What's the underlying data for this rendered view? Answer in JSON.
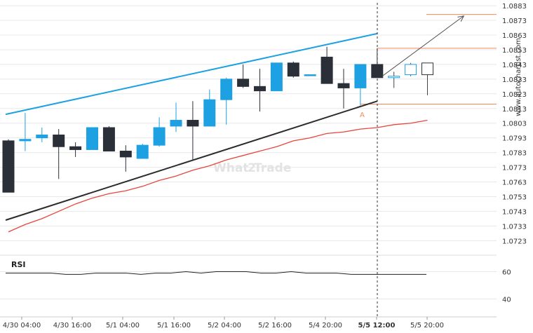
{
  "chart_data": {
    "type": "candlestick",
    "symbol": "",
    "price_axis": {
      "ticks": [
        "1.0883",
        "1.0873",
        "1.0863",
        "1.0853",
        "1.0843",
        "1.0833",
        "1.0823",
        "1.0813",
        "1.0803",
        "1.0793",
        "1.0783",
        "1.0773",
        "1.0763",
        "1.0753",
        "1.0743",
        "1.0733",
        "1.0723"
      ],
      "range": [
        1.0716,
        1.0884
      ]
    },
    "time_axis": {
      "ticks": [
        "4/30 04:00",
        "4/30 16:00",
        "5/1 04:00",
        "5/1 16:00",
        "5/2 04:00",
        "5/2 16:00",
        "5/4 20:00",
        "5/5 12:00",
        "5/5 20:00"
      ]
    },
    "current_time_label": "5/5 12:00",
    "candles": [
      {
        "o": 1.0791,
        "h": 1.0792,
        "l": 1.0756,
        "c": 1.0756
      },
      {
        "o": 1.0791,
        "h": 1.081,
        "l": 1.0784,
        "c": 1.0792
      },
      {
        "o": 1.0793,
        "h": 1.08,
        "l": 1.079,
        "c": 1.0795
      },
      {
        "o": 1.0795,
        "h": 1.0799,
        "l": 1.0765,
        "c": 1.0787
      },
      {
        "o": 1.0787,
        "h": 1.079,
        "l": 1.078,
        "c": 1.0785
      },
      {
        "o": 1.0785,
        "h": 1.08,
        "l": 1.0785,
        "c": 1.08
      },
      {
        "o": 1.08,
        "h": 1.0801,
        "l": 1.0784,
        "c": 1.0784
      },
      {
        "o": 1.0784,
        "h": 1.0788,
        "l": 1.077,
        "c": 1.078
      },
      {
        "o": 1.0779,
        "h": 1.0789,
        "l": 1.0779,
        "c": 1.0788
      },
      {
        "o": 1.0788,
        "h": 1.0807,
        "l": 1.0787,
        "c": 1.08
      },
      {
        "o": 1.0801,
        "h": 1.0817,
        "l": 1.0797,
        "c": 1.0805
      },
      {
        "o": 1.0805,
        "h": 1.0818,
        "l": 1.0778,
        "c": 1.0801
      },
      {
        "o": 1.0801,
        "h": 1.0826,
        "l": 1.0801,
        "c": 1.0819
      },
      {
        "o": 1.0819,
        "h": 1.0834,
        "l": 1.0802,
        "c": 1.0833
      },
      {
        "o": 1.0833,
        "h": 1.0843,
        "l": 1.0827,
        "c": 1.0828
      },
      {
        "o": 1.0828,
        "h": 1.084,
        "l": 1.0811,
        "c": 1.0825
      },
      {
        "o": 1.0825,
        "h": 1.0844,
        "l": 1.0825,
        "c": 1.0844
      },
      {
        "o": 1.0844,
        "h": 1.0845,
        "l": 1.0834,
        "c": 1.0835
      },
      {
        "o": 1.0836,
        "h": 1.0836,
        "l": 1.0836,
        "c": 1.0836
      },
      {
        "o": 1.0848,
        "h": 1.0855,
        "l": 1.083,
        "c": 1.083
      },
      {
        "o": 1.083,
        "h": 1.084,
        "l": 1.0813,
        "c": 1.0827
      },
      {
        "o": 1.0827,
        "h": 1.0843,
        "l": 1.0815,
        "c": 1.0843
      },
      {
        "o": 1.0843,
        "h": 1.0854,
        "l": 1.0834,
        "c": 1.0834
      }
    ],
    "forecast_candles": [
      {
        "o": 1.0834,
        "h": 1.0838,
        "l": 1.0827,
        "c": 1.0835
      },
      {
        "o": 1.0836,
        "h": 1.0844,
        "l": 1.0835,
        "c": 1.0843
      },
      {
        "o": 1.0844,
        "h": 1.0844,
        "l": 1.0822,
        "c": 1.0836
      }
    ],
    "lines": {
      "upper_channel": {
        "from": [
          0,
          1.0809
        ],
        "to": [
          22,
          1.0864
        ],
        "color": "#1da1e2"
      },
      "lower_channel": {
        "from": [
          0,
          1.0737
        ],
        "to": [
          22,
          1.0818
        ],
        "color": "#2b2b2b"
      },
      "moving_average": {
        "color": "#e8453c",
        "values": [
          1.0729,
          1.0734,
          1.0738,
          1.0743,
          1.0748,
          1.0752,
          1.0755,
          1.0757,
          1.076,
          1.0764,
          1.0767,
          1.0771,
          1.0774,
          1.0778,
          1.0781,
          1.0784,
          1.0787,
          1.0791,
          1.0793,
          1.0796,
          1.0797,
          1.0799,
          1.08,
          1.0802,
          1.0803,
          1.0805
        ]
      }
    },
    "levels": [
      {
        "value": 1.0877,
        "color": "#f08a5d"
      },
      {
        "value": 1.0854,
        "color": "#f08a5d"
      },
      {
        "value": 1.0816,
        "color": "#f08a5d"
      }
    ],
    "point_label": "A",
    "forecast_arrow": {
      "from": [
        22.3,
        1.0835
      ],
      "to": [
        27.0,
        1.0876
      ],
      "color": "#555555"
    },
    "colors": {
      "bull": "#1da1e2",
      "bear": "#2b2f38",
      "grid": "#e8e8e8"
    },
    "watermark_left": "What",
    "watermark_right": "Trade",
    "source_text": "www.autochartist.com",
    "rsi": {
      "label": "RSI",
      "ticks": [
        "60",
        "40"
      ],
      "range": [
        30,
        70
      ],
      "values": [
        59,
        59,
        59,
        59,
        58,
        58,
        59,
        59,
        59,
        58,
        59,
        59,
        60,
        59,
        60,
        60,
        60,
        59,
        59,
        60,
        59,
        59,
        59,
        58,
        58,
        58,
        58,
        58,
        58
      ]
    }
  }
}
